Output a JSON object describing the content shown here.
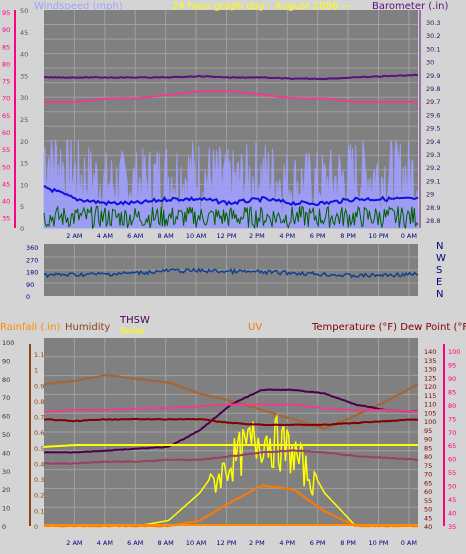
{
  "colors": {
    "page_bg": "#d4d4d4",
    "plot_bg": "#808080",
    "grid": "#a0a0a0",
    "wind_light": "#a0a0ff",
    "wind_gust": "#1010e0",
    "wind_avg": "#006000",
    "direction": "#104090",
    "barometer": "#5a1080",
    "temperature": "#f03c8c",
    "humidity": "#a86430",
    "rain": "#ff8c00",
    "uv": "#ff7800",
    "solar": "#ffff00",
    "thsw": "#4a004a",
    "dewpoint": "#800000",
    "dewpoint2": "#9a4060",
    "hum_axis": "#8b4513",
    "temp_axis": "#ff0066",
    "bright_axis": "#ff0080"
  },
  "top_panel": {
    "left_title": "Windspeed (mph)",
    "center_title": "24 hour graph day : August 2006 ---",
    "right_title": "Barometer (.in)",
    "left_ticks_grey": [
      "50",
      "45",
      "40",
      "35",
      "30",
      "25",
      "20",
      "15",
      "10",
      "5",
      "0"
    ],
    "left_ticks_pink": [
      "95",
      "90",
      "85",
      "80",
      "75",
      "70",
      "65",
      "60",
      "55",
      "50",
      "45",
      "40",
      "35"
    ],
    "right_ticks": [
      "30.3",
      "30.2",
      "30.1",
      "30",
      "29.9",
      "29.8",
      "29.7",
      "29.6",
      "29.5",
      "29.4",
      "29.3",
      "29.2",
      "29.1",
      "29",
      "28.9",
      "28.8"
    ]
  },
  "x_ticks": [
    "2 AM",
    "4 AM",
    "6 AM",
    "8 AM",
    "10 AM",
    "12 PM",
    "2 PM",
    "4 PM",
    "6 PM",
    "8 PM",
    "10 PM",
    "0 AM"
  ],
  "mid_panel": {
    "left_ticks": [
      "360",
      "270",
      "180",
      "90",
      "0"
    ],
    "compass": [
      "N",
      "W",
      "S",
      "E",
      "N"
    ]
  },
  "bottom_panel": {
    "rain_title": "Rainfall (.in)",
    "humidity_title": "Humidity",
    "thsw_label": "THSW",
    "solar_label": "Solar",
    "uv_title": "UV",
    "temp_title": "Temperature (°F) Dew Point (°F)",
    "rain_ticks": [
      "100",
      "90",
      "80",
      "70",
      "60",
      "50",
      "40",
      "30",
      "20",
      "10",
      "0"
    ],
    "hum_ticks": [
      "1.1",
      "1",
      "0.9",
      "0.8",
      "0.7",
      "0.6",
      "0.5",
      "0.4",
      "0.3",
      "0.2",
      "0.1",
      "0"
    ],
    "right_ticks_a": [
      "140",
      "135",
      "130",
      "125",
      "120",
      "115",
      "110",
      "105",
      "100",
      "95",
      "90",
      "85",
      "80",
      "75",
      "70",
      "65",
      "60",
      "55",
      "50",
      "45",
      "40"
    ],
    "right_ticks_b": [
      "100",
      "95",
      "90",
      "85",
      "80",
      "75",
      "70",
      "65",
      "60",
      "55",
      "50",
      "45",
      "40",
      "35"
    ]
  },
  "chart_data": [
    {
      "type": "line",
      "title": "24 hour graph day : August 2006 ---",
      "xlabel": "",
      "ylabel": "Windspeed (mph)",
      "y2label": "Barometer (.in)",
      "x": [
        "0 AM",
        "2 AM",
        "4 AM",
        "6 AM",
        "8 AM",
        "10 AM",
        "12 PM",
        "2 PM",
        "4 PM",
        "6 PM",
        "8 PM",
        "10 PM",
        "0 AM"
      ],
      "ylim": [
        0,
        50
      ],
      "y2lim": [
        28.8,
        30.3
      ],
      "grid": true,
      "series": [
        {
          "name": "Barometer (.in)",
          "axis": "right",
          "values": [
            29.88,
            29.88,
            29.88,
            29.88,
            29.88,
            29.89,
            29.88,
            29.88,
            29.87,
            29.87,
            29.88,
            29.89,
            29.9
          ]
        },
        {
          "name": "Windspeed (mph)",
          "axis": "left",
          "values": [
            10,
            7,
            6,
            6,
            7,
            7,
            6,
            7,
            6,
            6,
            7,
            7,
            7
          ]
        },
        {
          "name": "Temperature (°F)",
          "axis": "pink",
          "values": [
            70,
            70,
            71,
            71,
            72,
            73,
            73,
            72,
            71,
            71,
            70,
            70,
            70
          ]
        }
      ]
    },
    {
      "type": "line",
      "ylabel": "",
      "x": [
        "0 AM",
        "2 AM",
        "4 AM",
        "6 AM",
        "8 AM",
        "10 AM",
        "12 PM",
        "2 PM",
        "4 PM",
        "6 PM",
        "8 PM",
        "10 PM",
        "0 AM"
      ],
      "ylim": [
        0,
        360
      ],
      "grid": true,
      "series": [
        {
          "values": [
            145,
            148,
            152,
            160,
            175,
            175,
            170,
            165,
            160,
            150,
            140,
            145,
            150
          ]
        }
      ]
    },
    {
      "type": "line",
      "title": "",
      "x": [
        "0 AM",
        "2 AM",
        "4 AM",
        "6 AM",
        "8 AM",
        "10 AM",
        "12 PM",
        "2 PM",
        "4 PM",
        "6 PM",
        "8 PM",
        "10 PM",
        "0 AM"
      ],
      "ylabel": "Rainfall (.in)",
      "y2label": "Temperature (°F) Dew Point (°F)",
      "ylim": [
        0,
        100
      ],
      "y2lim": [
        40,
        140
      ],
      "grid": true,
      "series": [
        {
          "name": "Humidity",
          "values": [
            77,
            79,
            82,
            80,
            78,
            72,
            68,
            63,
            58,
            53,
            60,
            68,
            77
          ]
        },
        {
          "name": "THSW",
          "values": [
            40,
            40,
            41,
            42,
            43,
            52,
            66,
            74,
            74,
            72,
            66,
            63,
            62
          ]
        },
        {
          "name": "Solar",
          "values": [
            0,
            0,
            0,
            0,
            3,
            18,
            42,
            60,
            48,
            18,
            0,
            0,
            0
          ]
        },
        {
          "name": "UV",
          "values": [
            0,
            0,
            0,
            0,
            0,
            3,
            13,
            22,
            20,
            8,
            0,
            0,
            0
          ]
        },
        {
          "name": "Temperature (°F)",
          "values": [
            62,
            63,
            63,
            64,
            64,
            65,
            66,
            66,
            66,
            64,
            63,
            63,
            62
          ]
        },
        {
          "name": "Dew Point (°F)",
          "values": [
            58,
            57,
            58,
            58,
            58,
            58,
            56,
            55,
            55,
            55,
            56,
            57,
            58
          ]
        },
        {
          "values": [
            34,
            34,
            35,
            35,
            36,
            36,
            38,
            40,
            41,
            40,
            38,
            37,
            36
          ]
        },
        {
          "values": [
            43,
            44,
            44,
            44,
            44,
            44,
            44,
            44,
            44,
            44,
            44,
            44,
            44
          ]
        }
      ]
    }
  ]
}
